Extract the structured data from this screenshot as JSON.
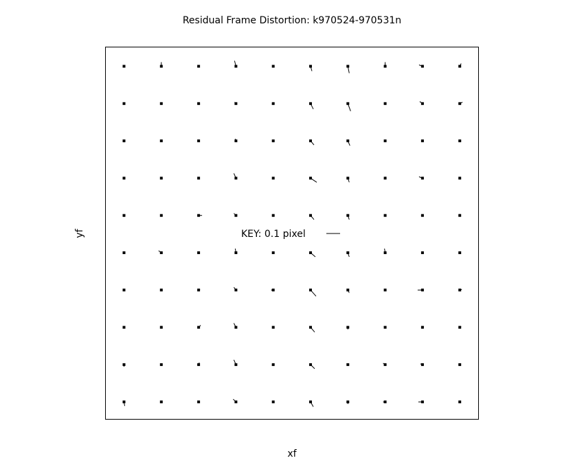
{
  "chart_data": {
    "type": "vector-field",
    "title": "Residual Frame Distortion: k970524-970531n",
    "xlabel": "xf",
    "ylabel": "yf",
    "key": {
      "label": "KEY: 0.1 pixel",
      "value": 0.1
    },
    "grid": false,
    "color": "#000000",
    "grid_shape": [
      10,
      10
    ],
    "vector_units": "pixel",
    "vectors_rows_top_to_bottom": [
      [
        [
          0,
          0
        ],
        [
          0,
          0.03
        ],
        [
          0,
          0
        ],
        [
          -0.01,
          0.04
        ],
        [
          0,
          0
        ],
        [
          0.01,
          -0.035
        ],
        [
          0.01,
          -0.05
        ],
        [
          0,
          0.03
        ],
        [
          -0.025,
          0.01
        ],
        [
          0.01,
          0.02
        ]
      ],
      [
        [
          0.005,
          -0.005
        ],
        [
          0,
          0
        ],
        [
          0.01,
          -0.005
        ],
        [
          -0.01,
          0.01
        ],
        [
          -0.01,
          -0.005
        ],
        [
          0.02,
          -0.04
        ],
        [
          0.02,
          -0.055
        ],
        [
          0,
          0
        ],
        [
          -0.02,
          0.015
        ],
        [
          0.02,
          0.01
        ]
      ],
      [
        [
          0,
          -0.01
        ],
        [
          0,
          0
        ],
        [
          0.005,
          0
        ],
        [
          -0.005,
          0.015
        ],
        [
          0,
          -0.01
        ],
        [
          0.025,
          -0.03
        ],
        [
          0.015,
          -0.035
        ],
        [
          0,
          0
        ],
        [
          0.005,
          0
        ],
        [
          0.01,
          0
        ]
      ],
      [
        [
          0,
          -0.01
        ],
        [
          0,
          0
        ],
        [
          0,
          0
        ],
        [
          -0.015,
          0.035
        ],
        [
          0,
          0
        ],
        [
          0.045,
          -0.03
        ],
        [
          0.01,
          -0.03
        ],
        [
          0.005,
          0.01
        ],
        [
          -0.025,
          0.01
        ],
        [
          0,
          0
        ]
      ],
      [
        [
          0,
          -0.01
        ],
        [
          0,
          0.005
        ],
        [
          0.025,
          0
        ],
        [
          -0.015,
          0.015
        ],
        [
          0,
          -0.005
        ],
        [
          0.025,
          -0.03
        ],
        [
          0.01,
          -0.03
        ],
        [
          0,
          0
        ],
        [
          -0.01,
          0
        ],
        [
          0,
          0.01
        ]
      ],
      [
        [
          0,
          0
        ],
        [
          -0.02,
          0.015
        ],
        [
          0,
          0
        ],
        [
          -0.005,
          0.03
        ],
        [
          0,
          0
        ],
        [
          0.035,
          -0.03
        ],
        [
          0.01,
          -0.03
        ],
        [
          -0.005,
          0.03
        ],
        [
          0,
          0
        ],
        [
          0,
          0
        ]
      ],
      [
        [
          0,
          0
        ],
        [
          0,
          0
        ],
        [
          0.01,
          0.005
        ],
        [
          -0.015,
          0.02
        ],
        [
          -0.015,
          0
        ],
        [
          0.04,
          -0.045
        ],
        [
          0.01,
          -0.02
        ],
        [
          -0.005,
          0.005
        ],
        [
          -0.035,
          0
        ],
        [
          0.015,
          0.005
        ]
      ],
      [
        [
          -0.005,
          0
        ],
        [
          0,
          0.01
        ],
        [
          0.015,
          0.015
        ],
        [
          -0.015,
          0.03
        ],
        [
          0,
          0
        ],
        [
          0.03,
          -0.035
        ],
        [
          0,
          -0.015
        ],
        [
          -0.01,
          0.005
        ],
        [
          0.01,
          0.005
        ],
        [
          0.01,
          0.005
        ]
      ],
      [
        [
          0,
          -0.015
        ],
        [
          0,
          0
        ],
        [
          0.005,
          0.015
        ],
        [
          -0.015,
          0.035
        ],
        [
          -0.01,
          -0.005
        ],
        [
          0.03,
          -0.03
        ],
        [
          0,
          0
        ],
        [
          -0.015,
          0.01
        ],
        [
          -0.015,
          0.005
        ],
        [
          0,
          0
        ]
      ],
      [
        [
          0.005,
          -0.03
        ],
        [
          0,
          0
        ],
        [
          0,
          0
        ],
        [
          -0.02,
          0.02
        ],
        [
          0,
          0
        ],
        [
          0.02,
          -0.035
        ],
        [
          0,
          -0.015
        ],
        [
          -0.015,
          0
        ],
        [
          -0.03,
          0
        ],
        [
          0,
          0
        ]
      ]
    ]
  }
}
